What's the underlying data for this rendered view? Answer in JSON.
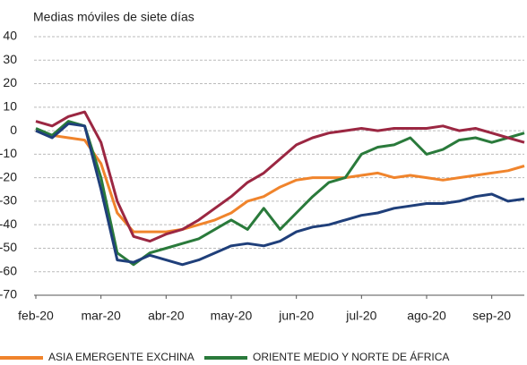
{
  "chart_data": {
    "type": "line",
    "title": "Medias móviles de siete días",
    "categories": [
      "feb-20",
      null,
      null,
      null,
      "mar-20",
      null,
      null,
      null,
      "abr-20",
      null,
      null,
      null,
      "may-20",
      null,
      null,
      null,
      "jun-20",
      null,
      null,
      null,
      "jul-20",
      null,
      null,
      null,
      "ago-20",
      null,
      null,
      null,
      "sep-20",
      null,
      null
    ],
    "series": [
      {
        "name": "ASIA EMERGENTE EXCHINA",
        "color": "#f0842c",
        "values": [
          0,
          -2,
          -3,
          -4,
          -14,
          -35,
          -43,
          -43,
          -43,
          -42,
          -40,
          -38,
          -35,
          -30,
          -28,
          -24,
          -21,
          -20,
          -20,
          -20,
          -19,
          -18,
          -20,
          -19,
          -20,
          -21,
          -20,
          -19,
          -18,
          -17,
          -15
        ]
      },
      {
        "name": "ORIENTE MEDIO Y NORTE DE ÁFRICA",
        "color": "#2a7a3b",
        "values": [
          1,
          -2,
          4,
          2,
          -20,
          -52,
          -57,
          -52,
          -50,
          -48,
          -46,
          -42,
          -38,
          -42,
          -33,
          -42,
          -35,
          -28,
          -22,
          -20,
          -10,
          -7,
          -6,
          -3,
          -10,
          -8,
          -4,
          -3,
          -5,
          -3,
          -1
        ]
      },
      {
        "color": "#9b2742",
        "values": [
          4,
          2,
          6,
          8,
          -5,
          -30,
          -45,
          -47,
          -44,
          -42,
          -38,
          -33,
          -28,
          -22,
          -18,
          -12,
          -6,
          -3,
          -1,
          0,
          1,
          0,
          1,
          1,
          1,
          2,
          0,
          1,
          -1,
          -3,
          -5
        ]
      },
      {
        "color": "#1f3f7a",
        "values": [
          0,
          -3,
          3,
          2,
          -25,
          -55,
          -56,
          -53,
          -55,
          -57,
          -55,
          -52,
          -49,
          -48,
          -49,
          -47,
          -43,
          -41,
          -40,
          -38,
          -36,
          -35,
          -33,
          -32,
          -31,
          -31,
          -30,
          -28,
          -27,
          -30,
          -29
        ]
      }
    ],
    "ylim": [
      -70,
      40
    ],
    "yticks": [
      40,
      30,
      20,
      10,
      0,
      -10,
      -20,
      -30,
      -40,
      -50,
      -60,
      -70
    ],
    "grid": true
  }
}
